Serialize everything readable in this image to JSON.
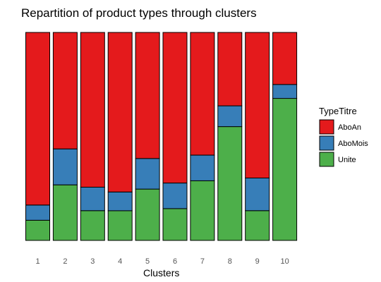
{
  "chart_data": {
    "type": "bar",
    "stacked": true,
    "normalized": true,
    "title": "Repartition of product types through clusters",
    "xlabel": "Clusters",
    "ylabel": "",
    "ylim": [
      0,
      1
    ],
    "categories": [
      "1",
      "2",
      "3",
      "4",
      "5",
      "6",
      "7",
      "8",
      "9",
      "10"
    ],
    "legend": {
      "title": "TypeTitre",
      "position": "right"
    },
    "series": [
      {
        "name": "Unite",
        "color": "#4daf4a",
        "values": [
          0.097,
          0.267,
          0.143,
          0.143,
          0.247,
          0.153,
          0.287,
          0.547,
          0.143,
          0.683
        ]
      },
      {
        "name": "AboMois",
        "color": "#377eb8",
        "values": [
          0.073,
          0.173,
          0.113,
          0.09,
          0.147,
          0.123,
          0.123,
          0.1,
          0.157,
          0.067
        ]
      },
      {
        "name": "AboAn",
        "color": "#e41a1c",
        "values": [
          0.83,
          0.56,
          0.744,
          0.767,
          0.606,
          0.724,
          0.59,
          0.353,
          0.7,
          0.25
        ]
      }
    ],
    "grid": false
  }
}
